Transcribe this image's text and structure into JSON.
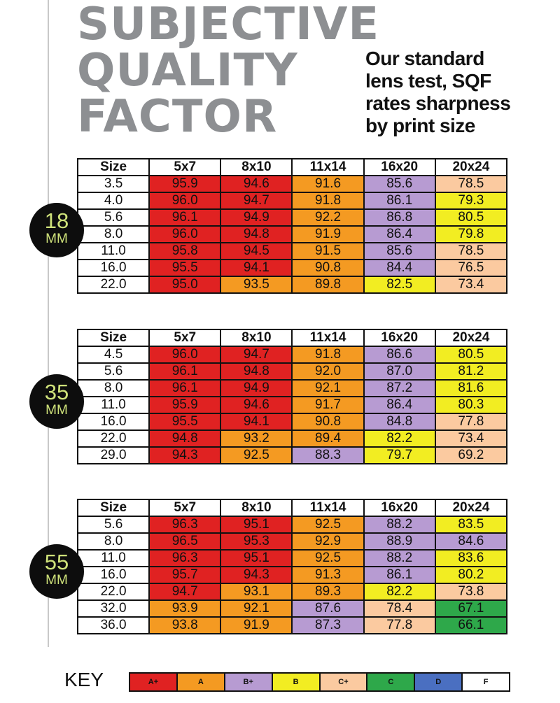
{
  "title": [
    "SUBJECTIVE",
    "QUALITY",
    "FACTOR"
  ],
  "subtitle": [
    "Our standard",
    "lens test, SQF",
    "rates sharpness",
    "by print size"
  ],
  "headers": [
    "Size",
    "5x7",
    "8x10",
    "11x14",
    "16x20",
    "20x24"
  ],
  "grade_colors": {
    "A+": "#e02222",
    "A": "#f49a22",
    "B+": "#b79bd2",
    "B": "#f2ed22",
    "C+": "#fbcaa0",
    "C": "#2ea84a",
    "D": "#4a6fc1",
    "F": "#ffffff"
  },
  "groups": [
    {
      "focal": "18",
      "unit": "MM",
      "rows": [
        {
          "size": "3.5",
          "values": [
            "95.9",
            "94.6",
            "91.6",
            "85.6",
            "78.5"
          ],
          "grades": [
            "A+",
            "A+",
            "A",
            "B+",
            "C+"
          ]
        },
        {
          "size": "4.0",
          "values": [
            "96.0",
            "94.7",
            "91.8",
            "86.1",
            "79.3"
          ],
          "grades": [
            "A+",
            "A+",
            "A",
            "B+",
            "B"
          ]
        },
        {
          "size": "5.6",
          "values": [
            "96.1",
            "94.9",
            "92.2",
            "86.8",
            "80.5"
          ],
          "grades": [
            "A+",
            "A+",
            "A",
            "B+",
            "B"
          ]
        },
        {
          "size": "8.0",
          "values": [
            "96.0",
            "94.8",
            "91.9",
            "86.4",
            "79.8"
          ],
          "grades": [
            "A+",
            "A+",
            "A",
            "B+",
            "B"
          ]
        },
        {
          "size": "11.0",
          "values": [
            "95.8",
            "94.5",
            "91.5",
            "85.6",
            "78.5"
          ],
          "grades": [
            "A+",
            "A+",
            "A",
            "B+",
            "C+"
          ]
        },
        {
          "size": "16.0",
          "values": [
            "95.5",
            "94.1",
            "90.8",
            "84.4",
            "76.5"
          ],
          "grades": [
            "A+",
            "A+",
            "A",
            "B+",
            "C+"
          ]
        },
        {
          "size": "22.0",
          "values": [
            "95.0",
            "93.5",
            "89.8",
            "82.5",
            "73.4"
          ],
          "grades": [
            "A+",
            "A",
            "A",
            "B",
            "C+"
          ]
        }
      ]
    },
    {
      "focal": "35",
      "unit": "MM",
      "rows": [
        {
          "size": "4.5",
          "values": [
            "96.0",
            "94.7",
            "91.8",
            "86.6",
            "80.5"
          ],
          "grades": [
            "A+",
            "A+",
            "A",
            "B+",
            "B"
          ]
        },
        {
          "size": "5.6",
          "values": [
            "96.1",
            "94.8",
            "92.0",
            "87.0",
            "81.2"
          ],
          "grades": [
            "A+",
            "A+",
            "A",
            "B+",
            "B"
          ]
        },
        {
          "size": "8.0",
          "values": [
            "96.1",
            "94.9",
            "92.1",
            "87.2",
            "81.6"
          ],
          "grades": [
            "A+",
            "A+",
            "A",
            "B+",
            "B"
          ]
        },
        {
          "size": "11.0",
          "values": [
            "95.9",
            "94.6",
            "91.7",
            "86.4",
            "80.3"
          ],
          "grades": [
            "A+",
            "A+",
            "A",
            "B+",
            "B"
          ]
        },
        {
          "size": "16.0",
          "values": [
            "95.5",
            "94.1",
            "90.8",
            "84.8",
            "77.8"
          ],
          "grades": [
            "A+",
            "A+",
            "A",
            "B+",
            "C+"
          ]
        },
        {
          "size": "22.0",
          "values": [
            "94.8",
            "93.2",
            "89.4",
            "82.2",
            "73.4"
          ],
          "grades": [
            "A+",
            "A",
            "A",
            "B",
            "C+"
          ]
        },
        {
          "size": "29.0",
          "values": [
            "94.3",
            "92.5",
            "88.3",
            "79.7",
            "69.2"
          ],
          "grades": [
            "A+",
            "A",
            "B+",
            "B",
            "C+"
          ]
        }
      ]
    },
    {
      "focal": "55",
      "unit": "MM",
      "rows": [
        {
          "size": "5.6",
          "values": [
            "96.3",
            "95.1",
            "92.5",
            "88.2",
            "83.5"
          ],
          "grades": [
            "A+",
            "A+",
            "A",
            "B+",
            "B"
          ]
        },
        {
          "size": "8.0",
          "values": [
            "96.5",
            "95.3",
            "92.9",
            "88.9",
            "84.6"
          ],
          "grades": [
            "A+",
            "A+",
            "A",
            "B+",
            "B+"
          ]
        },
        {
          "size": "11.0",
          "values": [
            "96.3",
            "95.1",
            "92.5",
            "88.2",
            "83.6"
          ],
          "grades": [
            "A+",
            "A+",
            "A",
            "B+",
            "B"
          ]
        },
        {
          "size": "16.0",
          "values": [
            "95.7",
            "94.3",
            "91.3",
            "86.1",
            "80.2"
          ],
          "grades": [
            "A+",
            "A+",
            "A",
            "B+",
            "B"
          ]
        },
        {
          "size": "22.0",
          "values": [
            "94.7",
            "93.1",
            "89.3",
            "82.2",
            "73.8"
          ],
          "grades": [
            "A+",
            "A",
            "A",
            "B",
            "C+"
          ]
        },
        {
          "size": "32.0",
          "values": [
            "93.9",
            "92.1",
            "87.6",
            "78.4",
            "67.1"
          ],
          "grades": [
            "A",
            "A",
            "B+",
            "C+",
            "C"
          ]
        },
        {
          "size": "36.0",
          "values": [
            "93.8",
            "91.9",
            "87.3",
            "77.8",
            "66.1"
          ],
          "grades": [
            "A",
            "A",
            "B+",
            "C+",
            "C"
          ]
        }
      ]
    }
  ],
  "key": {
    "label": "KEY",
    "items": [
      "A+",
      "A",
      "B+",
      "B",
      "C+",
      "C",
      "D",
      "F"
    ]
  }
}
